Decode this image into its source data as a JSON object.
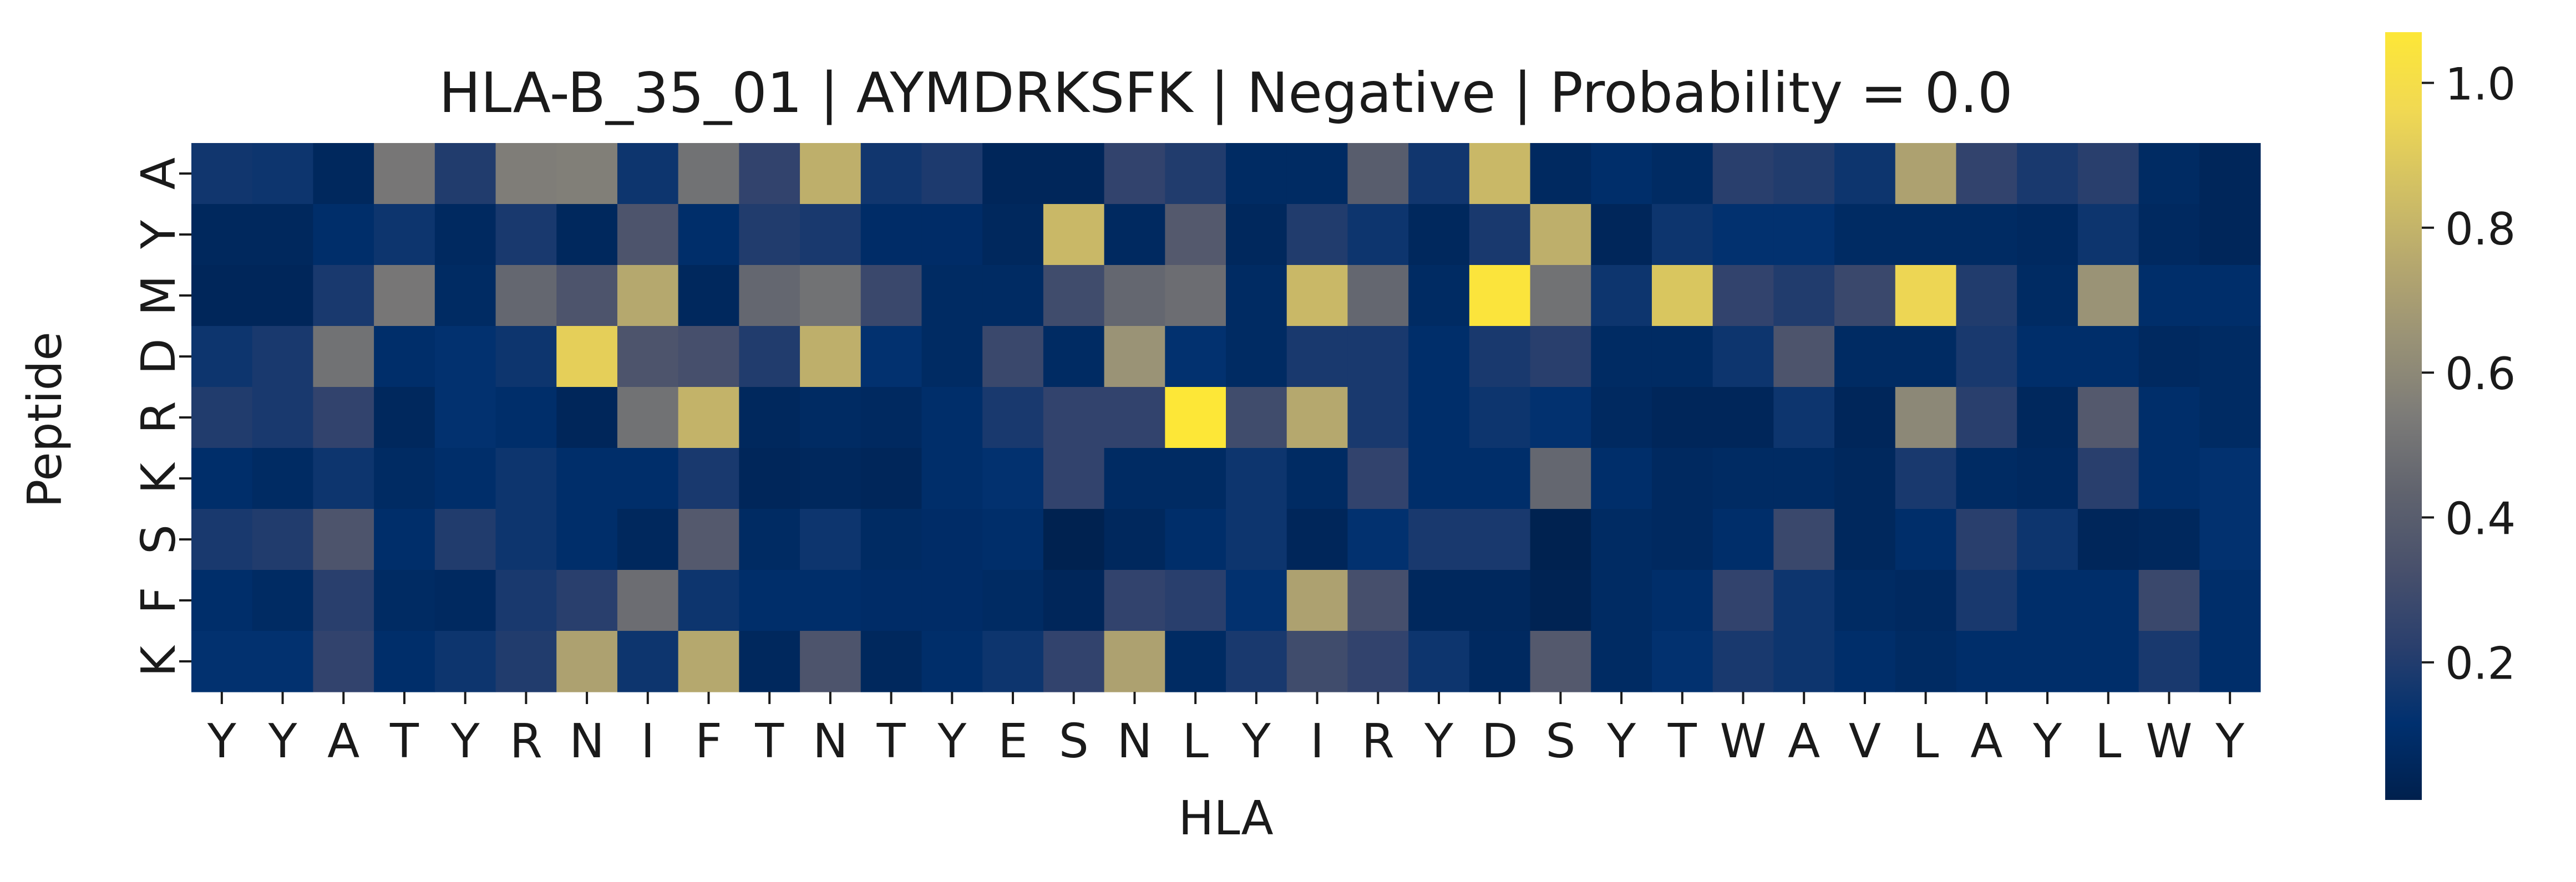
{
  "chart_data": {
    "type": "heatmap",
    "title": "HLA-B_35_01 | AYMDRKSFK | Negative | Probability = 0.0",
    "xlabel": "HLA",
    "ylabel": "Peptide",
    "x_categories": [
      "Y",
      "Y",
      "A",
      "T",
      "Y",
      "R",
      "N",
      "I",
      "F",
      "T",
      "N",
      "T",
      "Y",
      "E",
      "S",
      "N",
      "L",
      "Y",
      "I",
      "R",
      "Y",
      "D",
      "S",
      "Y",
      "T",
      "W",
      "A",
      "V",
      "L",
      "A",
      "Y",
      "L",
      "W",
      "Y"
    ],
    "y_categories": [
      "A",
      "Y",
      "M",
      "D",
      "R",
      "K",
      "S",
      "F",
      "K"
    ],
    "values": [
      [
        0.16,
        0.15,
        0.06,
        0.52,
        0.2,
        0.55,
        0.56,
        0.15,
        0.5,
        0.25,
        0.78,
        0.16,
        0.19,
        0.05,
        0.05,
        0.25,
        0.2,
        0.08,
        0.08,
        0.4,
        0.16,
        0.82,
        0.07,
        0.1,
        0.08,
        0.22,
        0.2,
        0.15,
        0.72,
        0.25,
        0.18,
        0.22,
        0.08,
        0.05
      ],
      [
        0.06,
        0.06,
        0.1,
        0.15,
        0.07,
        0.18,
        0.06,
        0.35,
        0.1,
        0.2,
        0.18,
        0.09,
        0.09,
        0.06,
        0.82,
        0.07,
        0.38,
        0.06,
        0.2,
        0.15,
        0.06,
        0.18,
        0.78,
        0.05,
        0.15,
        0.12,
        0.12,
        0.08,
        0.08,
        0.08,
        0.07,
        0.15,
        0.07,
        0.05
      ],
      [
        0.05,
        0.05,
        0.18,
        0.52,
        0.08,
        0.45,
        0.35,
        0.75,
        0.06,
        0.45,
        0.5,
        0.28,
        0.08,
        0.08,
        0.3,
        0.45,
        0.48,
        0.08,
        0.82,
        0.45,
        0.08,
        1.05,
        0.5,
        0.15,
        0.88,
        0.25,
        0.2,
        0.28,
        0.95,
        0.2,
        0.08,
        0.65,
        0.1,
        0.1
      ],
      [
        0.15,
        0.18,
        0.5,
        0.1,
        0.12,
        0.15,
        0.92,
        0.35,
        0.32,
        0.2,
        0.78,
        0.12,
        0.08,
        0.28,
        0.08,
        0.65,
        0.12,
        0.08,
        0.18,
        0.18,
        0.1,
        0.18,
        0.22,
        0.08,
        0.08,
        0.15,
        0.35,
        0.08,
        0.08,
        0.18,
        0.1,
        0.1,
        0.07,
        0.08
      ],
      [
        0.2,
        0.18,
        0.25,
        0.06,
        0.12,
        0.1,
        0.05,
        0.5,
        0.8,
        0.06,
        0.08,
        0.07,
        0.1,
        0.18,
        0.25,
        0.25,
        1.07,
        0.3,
        0.75,
        0.18,
        0.1,
        0.15,
        0.12,
        0.07,
        0.05,
        0.05,
        0.15,
        0.05,
        0.6,
        0.22,
        0.06,
        0.38,
        0.1,
        0.08
      ],
      [
        0.1,
        0.08,
        0.15,
        0.08,
        0.1,
        0.15,
        0.1,
        0.1,
        0.18,
        0.05,
        0.06,
        0.05,
        0.1,
        0.12,
        0.25,
        0.08,
        0.08,
        0.15,
        0.08,
        0.25,
        0.1,
        0.1,
        0.45,
        0.1,
        0.07,
        0.08,
        0.08,
        0.06,
        0.18,
        0.08,
        0.07,
        0.22,
        0.1,
        0.12
      ],
      [
        0.18,
        0.2,
        0.35,
        0.1,
        0.2,
        0.15,
        0.1,
        0.06,
        0.38,
        0.08,
        0.15,
        0.08,
        0.09,
        0.1,
        0.02,
        0.06,
        0.1,
        0.15,
        0.05,
        0.12,
        0.18,
        0.18,
        0.02,
        0.08,
        0.07,
        0.1,
        0.28,
        0.06,
        0.1,
        0.22,
        0.15,
        0.05,
        0.06,
        0.12
      ],
      [
        0.1,
        0.08,
        0.22,
        0.08,
        0.07,
        0.18,
        0.22,
        0.48,
        0.15,
        0.1,
        0.1,
        0.09,
        0.09,
        0.08,
        0.05,
        0.25,
        0.22,
        0.12,
        0.72,
        0.32,
        0.06,
        0.06,
        0.03,
        0.08,
        0.1,
        0.25,
        0.15,
        0.08,
        0.07,
        0.18,
        0.1,
        0.1,
        0.28,
        0.1
      ],
      [
        0.12,
        0.12,
        0.25,
        0.1,
        0.15,
        0.2,
        0.72,
        0.15,
        0.75,
        0.06,
        0.35,
        0.06,
        0.1,
        0.15,
        0.25,
        0.72,
        0.08,
        0.18,
        0.3,
        0.25,
        0.15,
        0.07,
        0.38,
        0.08,
        0.12,
        0.18,
        0.15,
        0.1,
        0.08,
        0.1,
        0.1,
        0.1,
        0.18,
        0.1
      ]
    ],
    "zlim": [
      0.01,
      1.07
    ],
    "colormap": "cividis",
    "colorbar_ticks": [
      "0.2",
      "0.4",
      "0.6",
      "0.8",
      "1.0"
    ],
    "colorbar_tick_values": [
      0.2,
      0.4,
      0.6,
      0.8,
      1.0
    ],
    "grid": false,
    "colorbar_position": "right"
  }
}
